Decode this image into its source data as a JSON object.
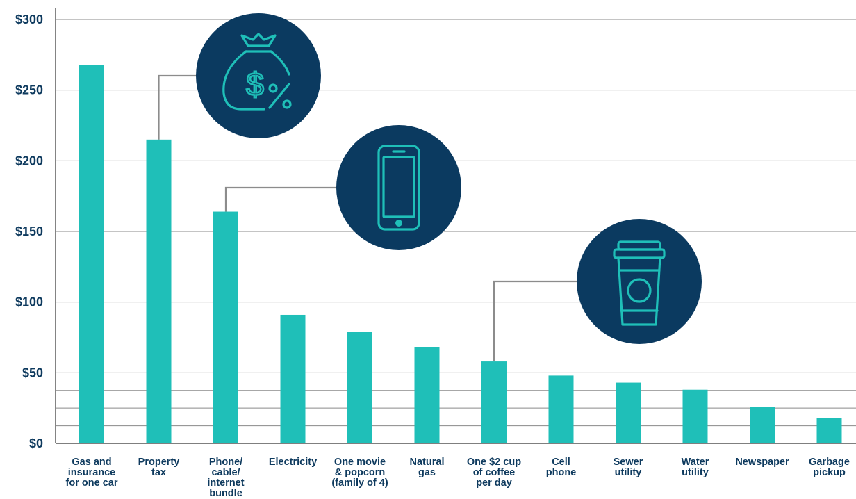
{
  "chart_data": {
    "type": "bar",
    "title": "",
    "xlabel": "",
    "ylabel": "",
    "ylim": [
      0,
      300
    ],
    "yticks": [
      0,
      50,
      100,
      150,
      200,
      250,
      300
    ],
    "ytick_labels": [
      "$0",
      "$50",
      "$100",
      "$150",
      "$200",
      "$250",
      "$300"
    ],
    "extra_gridlines": [
      12.5,
      25,
      37.5
    ],
    "grid": true,
    "bar_color": "#1fbfb8",
    "icon_color": "#0b3a60",
    "categories": [
      "Gas and insurance for one car",
      "Property tax",
      "Phone/ cable/ internet bundle",
      "Electricity",
      "One movie & popcorn (family of 4)",
      "Natural gas",
      "One $2 cup of coffee per day",
      "Cell phone",
      "Sewer utility",
      "Water utility",
      "Newspaper",
      "Garbage pickup"
    ],
    "category_lines": [
      [
        "Gas and",
        "insurance",
        "for one car"
      ],
      [
        "Property",
        "tax"
      ],
      [
        "Phone/",
        "cable/",
        "internet",
        "bundle"
      ],
      [
        "Electricity"
      ],
      [
        "One movie",
        "& popcorn",
        "(family of 4)"
      ],
      [
        "Natural",
        "gas"
      ],
      [
        "One $2 cup",
        "of coffee",
        "per day"
      ],
      [
        "Cell",
        "phone"
      ],
      [
        "Sewer",
        "utility"
      ],
      [
        "Water",
        "utility"
      ],
      [
        "Newspaper"
      ],
      [
        "Garbage",
        "pickup"
      ]
    ],
    "values": [
      268,
      215,
      164,
      91,
      79,
      68,
      58,
      48,
      43,
      38,
      26,
      18
    ],
    "callouts": [
      {
        "category_index": 1,
        "icon": "money-bag-icon"
      },
      {
        "category_index": 2,
        "icon": "smartphone-icon"
      },
      {
        "category_index": 6,
        "icon": "coffee-cup-icon"
      }
    ]
  }
}
